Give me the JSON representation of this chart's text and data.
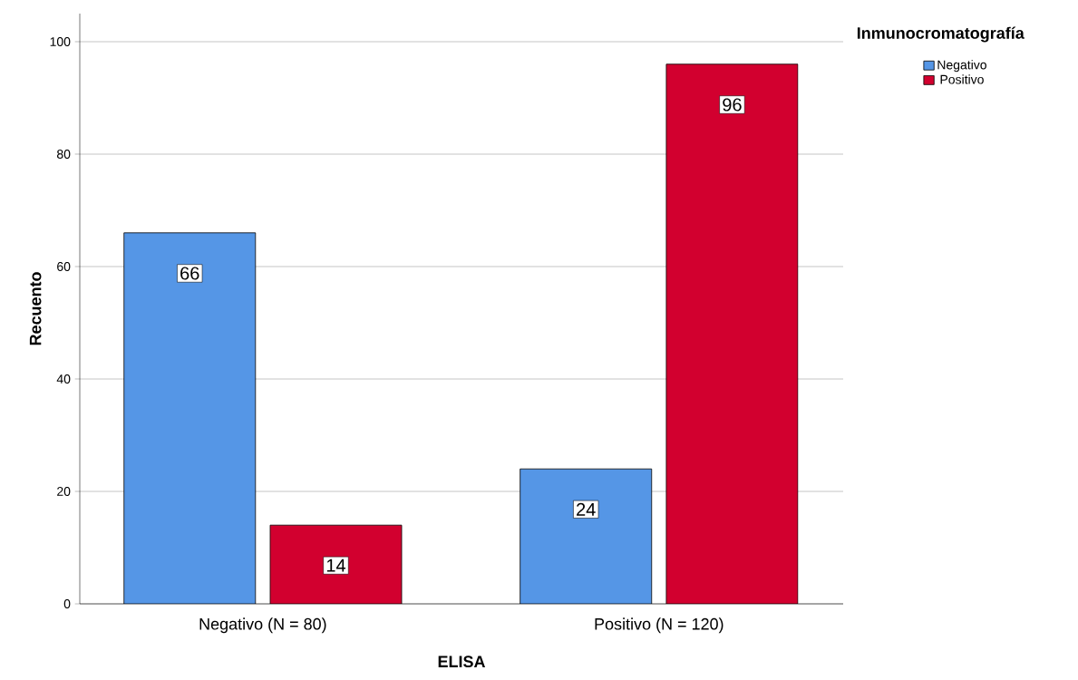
{
  "chart_data": {
    "type": "bar",
    "xlabel": "ELISA",
    "ylabel": "Recuento",
    "legend_title": "Inmunocromatografía",
    "categories": [
      "Negativo (N = 80)",
      "Positivo (N = 120)"
    ],
    "series": [
      {
        "name": "Negativo",
        "color": "#5596e6",
        "values": [
          66,
          24
        ],
        "value_labels": [
          "66",
          "24"
        ]
      },
      {
        "name": "Positivo",
        "color": "#d2002f",
        "values": [
          14,
          96
        ],
        "value_labels": [
          "14",
          "96"
        ]
      }
    ],
    "ylim": [
      0,
      105
    ],
    "yticks": [
      0,
      20,
      40,
      60,
      80,
      100
    ],
    "grid": "y",
    "legend": "top right"
  }
}
